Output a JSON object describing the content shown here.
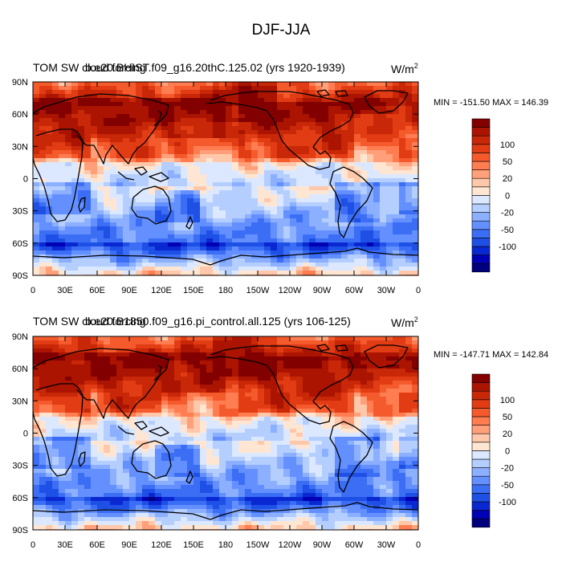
{
  "figure": {
    "title": "DJF-JJA"
  },
  "colorbar": {
    "colors": [
      "#00007f",
      "#0000b4",
      "#0a28d2",
      "#1e50e6",
      "#3c6ef5",
      "#6490ff",
      "#8cb0ff",
      "#b4ceff",
      "#dce8ff",
      "#ffe6d2",
      "#ffc8aa",
      "#ffa07a",
      "#ff7d50",
      "#f55a2d",
      "#e13c14",
      "#c82808",
      "#aa1400",
      "#820000"
    ],
    "labels": [
      {
        "level": 7,
        "text": "100"
      },
      {
        "level": 6,
        "text": "50"
      },
      {
        "level": 5,
        "text": "20"
      },
      {
        "level": 4,
        "text": "0"
      },
      {
        "level": 3,
        "text": "-20"
      },
      {
        "level": 2,
        "text": "-50"
      },
      {
        "level": 1,
        "text": "-100"
      }
    ]
  },
  "chart_data": [
    {
      "type": "heatmap",
      "title_left": "TOM SW cloud forcing",
      "case_name": "b.e20.BHIST.f09_g16.20thC.125.02 (yrs 1920-1939)",
      "units_base": "W/m",
      "units_exp": "2",
      "stats": "MIN = -151.50 MAX = 146.39",
      "min": -151.5,
      "max": 146.39,
      "x_ticks": [
        "0",
        "30E",
        "60E",
        "90E",
        "120E",
        "150E",
        "180",
        "150W",
        "120W",
        "90W",
        "60W",
        "30W",
        "0"
      ],
      "y_ticks": [
        "90N",
        "60N",
        "30N",
        "0",
        "30S",
        "60S",
        "90S"
      ],
      "xlim": [
        0,
        360
      ],
      "ylim": [
        -90,
        90
      ]
    },
    {
      "type": "heatmap",
      "title_left": "TOM SW cloud forcing",
      "case_name": "b.e20.B1850.f09_g16.pi_control.all.125 (yrs 106-125)",
      "units_base": "W/m",
      "units_exp": "2",
      "stats": "MIN = -147.71 MAX = 142.84",
      "min": -147.71,
      "max": 142.84,
      "x_ticks": [
        "0",
        "30E",
        "60E",
        "90E",
        "120E",
        "150E",
        "180",
        "150W",
        "120W",
        "90W",
        "60W",
        "30W",
        "0"
      ],
      "y_ticks": [
        "90N",
        "60N",
        "30N",
        "0",
        "30S",
        "60S",
        "90S"
      ],
      "xlim": [
        0,
        360
      ],
      "ylim": [
        -90,
        90
      ]
    }
  ]
}
